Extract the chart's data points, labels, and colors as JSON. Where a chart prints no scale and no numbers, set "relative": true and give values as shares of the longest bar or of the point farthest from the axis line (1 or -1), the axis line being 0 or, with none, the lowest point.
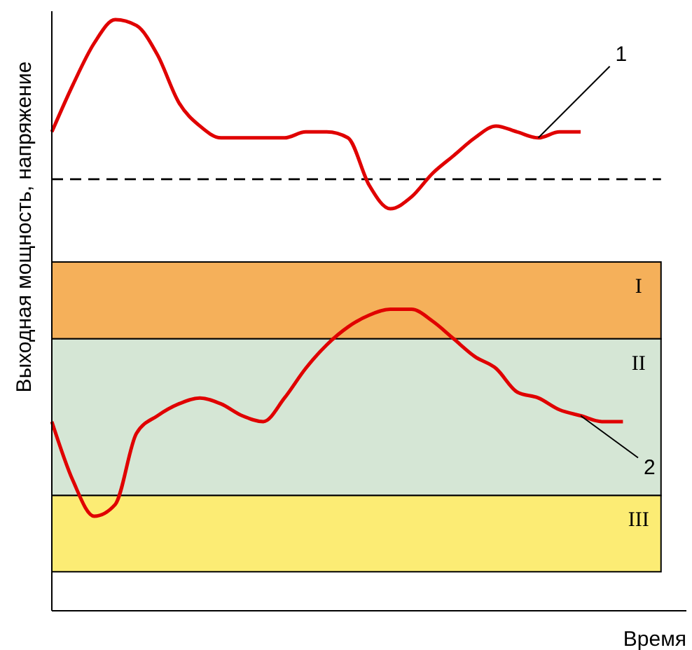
{
  "chart_data": {
    "type": "line",
    "relative": true,
    "xlabel": "Время",
    "ylabel": "Выходная мощность, напряжение",
    "categories": [
      null,
      null,
      null,
      null,
      null,
      null,
      null,
      null,
      null,
      null,
      null,
      null,
      null,
      null,
      null,
      null,
      null,
      null,
      null,
      null,
      null,
      null,
      null,
      null,
      null,
      null,
      null,
      null,
      null,
      null,
      null
    ],
    "series": [
      {
        "name": "1",
        "color": "#e00000",
        "values": [
          0.81,
          0.89,
          0.96,
          1,
          0.99,
          0.94,
          0.86,
          0.82,
          0.8,
          0.8,
          0.8,
          0.8,
          0.81,
          0.81,
          0.8,
          0.72,
          0.68,
          0.7,
          0.74,
          0.77,
          0.8,
          0.82,
          0.81,
          0.8,
          0.81,
          0.81,
          null,
          null,
          null,
          null,
          null
        ]
      },
      {
        "name": "2",
        "color": "#e00000",
        "values": [
          0.32,
          0.22,
          0.16,
          0.18,
          0.3,
          0.33,
          0.35,
          0.36,
          0.35,
          0.33,
          0.32,
          0.36,
          0.41,
          0.45,
          0.48,
          0.5,
          0.51,
          0.51,
          0.49,
          0.46,
          0.43,
          0.41,
          0.37,
          0.36,
          0.34,
          0.33,
          0.32,
          0.32,
          null,
          null,
          null
        ]
      }
    ],
    "ref_lines": [
      {
        "axis": "y",
        "value": 0.73,
        "line_style": "dashed",
        "color": "#000000"
      }
    ],
    "bands": [
      {
        "axis": "y",
        "from": 0.46,
        "to": 0.59,
        "label": "I",
        "color": "#f5b05a"
      },
      {
        "axis": "y",
        "from": 0.195,
        "to": 0.46,
        "label": "II",
        "color": "#d5e6d5"
      },
      {
        "axis": "y",
        "from": 0.066,
        "to": 0.195,
        "label": "III",
        "color": "#fcec74"
      }
    ]
  }
}
